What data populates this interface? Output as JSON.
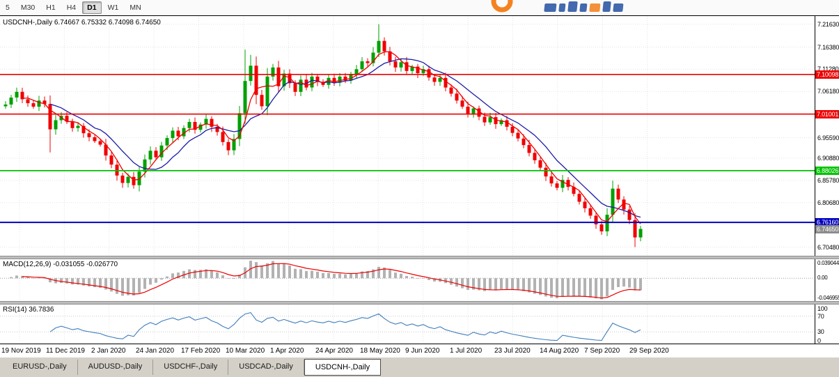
{
  "toolbar": {
    "periods": [
      {
        "label": "5",
        "active": false
      },
      {
        "label": "M30",
        "active": false
      },
      {
        "label": "H1",
        "active": false
      },
      {
        "label": "H4",
        "active": false
      },
      {
        "label": "D1",
        "active": true
      },
      {
        "label": "W1",
        "active": false
      },
      {
        "label": "MN",
        "active": false
      }
    ]
  },
  "chart": {
    "title_symbol": "USDCNH-,Daily",
    "title_ohlc": "6.74667 6.75332 6.74098 6.74650",
    "price_axis": {
      "min": 6.685,
      "max": 7.235,
      "grid_ticks": [
        {
          "t": "7.21630",
          "v": 7.2163
        },
        {
          "t": "7.16380",
          "v": 7.1638
        },
        {
          "t": "7.11280",
          "v": 7.1128
        },
        {
          "t": "7.06180",
          "v": 7.0618
        },
        {
          "t": "6.95590",
          "v": 6.9559
        },
        {
          "t": "6.90880",
          "v": 6.9088
        },
        {
          "t": "6.85780",
          "v": 6.8578
        },
        {
          "t": "6.80680",
          "v": 6.8068
        },
        {
          "t": "6.70480",
          "v": 6.7048
        }
      ]
    },
    "levels": [
      {
        "t": "7.10098",
        "v": 7.10098,
        "color": "#ee0000",
        "w": 1.6
      },
      {
        "t": "7.01001",
        "v": 7.01001,
        "color": "#ee0000",
        "w": 1.6
      },
      {
        "t": "6.88026",
        "v": 6.88026,
        "color": "#00c400",
        "w": 1.8
      },
      {
        "t": "6.76160",
        "v": 6.7616,
        "color": "#0000c0",
        "w": 2
      }
    ],
    "current_price": {
      "t": "6.74650",
      "v": 6.7465,
      "bg": "#8c8c8c"
    },
    "colors": {
      "up": "#00a000",
      "down": "#f00000",
      "ma_fast": "#ee0000",
      "ma_slow": "#1c1ca8",
      "grid": "#e4e4e4"
    }
  },
  "chart_data": {
    "type": "candlestick",
    "symbol": "USDCNH-",
    "timeframe": "Daily",
    "last_ohlc": {
      "open": 6.74667,
      "high": 6.75332,
      "low": 6.74098,
      "close": 6.7465
    },
    "closes": [
      7.032,
      7.048,
      7.061,
      7.044,
      7.035,
      7.027,
      7.041,
      7.033,
      6.975,
      6.996,
      7.006,
      6.993,
      6.978,
      6.983,
      6.966,
      6.957,
      6.948,
      6.94,
      6.915,
      6.894,
      6.869,
      6.852,
      6.866,
      6.847,
      6.878,
      6.906,
      6.926,
      6.911,
      6.938,
      6.955,
      6.972,
      6.959,
      6.978,
      6.992,
      6.974,
      6.986,
      6.999,
      6.981,
      6.969,
      6.946,
      6.927,
      6.953,
      7.012,
      7.086,
      7.121,
      7.054,
      7.028,
      7.096,
      7.117,
      7.074,
      7.103,
      7.081,
      7.061,
      7.089,
      7.071,
      7.096,
      7.084,
      7.077,
      7.093,
      7.082,
      7.096,
      7.087,
      7.101,
      7.113,
      7.131,
      7.127,
      7.151,
      7.178,
      7.154,
      7.131,
      7.117,
      7.129,
      7.109,
      7.119,
      7.104,
      7.113,
      7.094,
      7.084,
      7.093,
      7.071,
      7.057,
      7.041,
      7.027,
      7.011,
      7.023,
      7.004,
      6.991,
      7.003,
      6.987,
      6.996,
      6.981,
      6.967,
      6.954,
      6.939,
      6.921,
      6.904,
      6.887,
      6.867,
      6.851,
      6.841,
      6.859,
      6.843,
      6.827,
      6.809,
      6.794,
      6.777,
      6.757,
      6.741,
      6.779,
      6.839,
      6.814,
      6.791,
      6.767,
      6.727,
      6.7465
    ],
    "wick_overrides": {
      "8": {
        "low": 6.922
      },
      "43": {
        "high": 7.158
      },
      "44": {
        "high": 7.146
      },
      "67": {
        "high": 7.2163
      },
      "113": {
        "low": 6.7048
      }
    },
    "x_labels": [
      "19 Nov 2019",
      "11 Dec 2019",
      "2 Jan 2020",
      "24 Jan 2020",
      "17 Feb 2020",
      "10 Mar 2020",
      "1 Apr 2020",
      "24 Apr 2020",
      "18 May 2020",
      "9 Jun 2020",
      "1 Jul 2020",
      "23 Jul 2020",
      "14 Aug 2020",
      "7 Sep 2020",
      "29 Sep 2020"
    ]
  },
  "macd": {
    "label": "MACD(12,26,9) -0.031055 -0.026770",
    "main_value": -0.031055,
    "signal_value": -0.02677,
    "axis": [
      {
        "t": "0.039044",
        "v": 0.039044
      },
      {
        "t": "0.00",
        "v": 0
      },
      {
        "t": "-0.046955",
        "v": -0.046955
      }
    ],
    "range": {
      "max": 0.039044,
      "min": -0.046955
    },
    "colors": {
      "hist": "#b2b2b2",
      "signal": "#ee0000"
    }
  },
  "rsi": {
    "label": "RSI(14) 36.7836",
    "value": 36.7836,
    "axis": [
      {
        "t": "100",
        "v": 100
      },
      {
        "t": "70",
        "v": 70
      },
      {
        "t": "30",
        "v": 30
      },
      {
        "t": "0",
        "v": 0
      }
    ],
    "levels": [
      70,
      30
    ],
    "color": "#3e7dbd"
  },
  "tabs": [
    {
      "label": "EURUSD-,Daily",
      "active": false
    },
    {
      "label": "AUDUSD-,Daily",
      "active": false
    },
    {
      "label": "USDCHF-,Daily",
      "active": false
    },
    {
      "label": "USDCAD-,Daily",
      "active": false
    },
    {
      "label": "USDCNH-,Daily",
      "active": true
    }
  ]
}
